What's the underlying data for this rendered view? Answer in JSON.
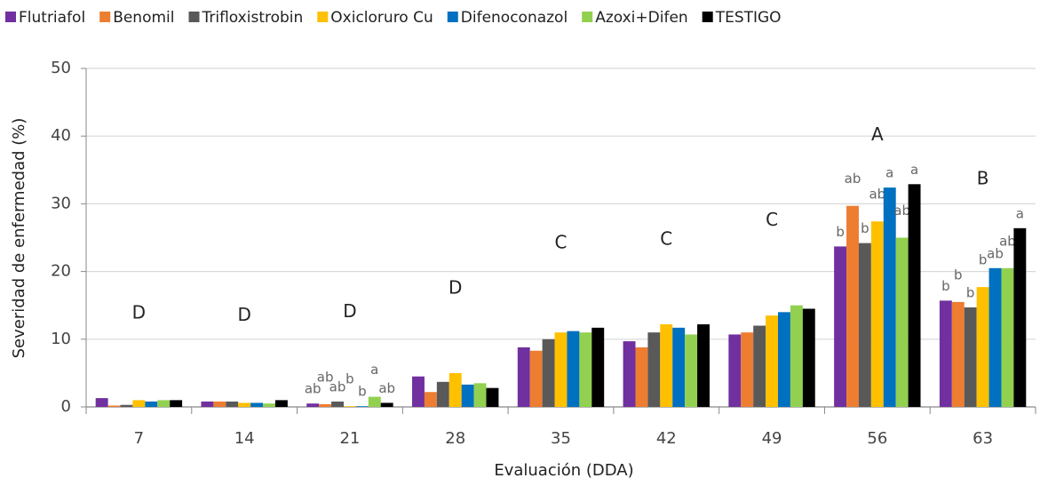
{
  "chart_data": {
    "type": "bar",
    "xlabel": "Evaluación (DDA)",
    "ylabel": "Severidad de enfermedad (%)",
    "categories": [
      "7",
      "14",
      "21",
      "28",
      "35",
      "42",
      "49",
      "56",
      "63"
    ],
    "group_letters": [
      "D",
      "D",
      "D",
      "D",
      "C",
      "C",
      "C",
      "A",
      "B"
    ],
    "series": [
      {
        "name": "Flutriafol",
        "color": "#7030a0",
        "values": [
          1.3,
          0.8,
          0.5,
          4.5,
          8.8,
          9.7,
          10.7,
          23.7,
          15.7
        ],
        "letters": [
          null,
          null,
          "ab",
          null,
          null,
          null,
          null,
          "b",
          "b"
        ]
      },
      {
        "name": "Benomil",
        "color": "#ed7d31",
        "values": [
          0.2,
          0.8,
          0.4,
          2.2,
          8.3,
          8.8,
          11.0,
          29.7,
          15.5
        ],
        "letters": [
          null,
          null,
          "ab",
          null,
          null,
          null,
          null,
          "ab",
          "b"
        ]
      },
      {
        "name": "Trifloxistrobin",
        "color": "#595959",
        "values": [
          0.3,
          0.8,
          0.8,
          3.7,
          10.0,
          11.0,
          12.0,
          24.2,
          14.7
        ],
        "letters": [
          null,
          null,
          "ab",
          null,
          null,
          null,
          null,
          "b",
          "b"
        ]
      },
      {
        "name": "Oxicloruro Cu",
        "color": "#ffc000",
        "values": [
          1.0,
          0.6,
          0.1,
          5.0,
          11.0,
          12.2,
          13.5,
          27.4,
          17.7
        ],
        "letters": [
          null,
          null,
          "b",
          null,
          null,
          null,
          null,
          "ab",
          "b"
        ]
      },
      {
        "name": "Difenoconazol",
        "color": "#0070c0",
        "values": [
          0.8,
          0.6,
          0.1,
          3.3,
          11.2,
          11.7,
          14.0,
          32.4,
          20.5
        ],
        "letters": [
          null,
          null,
          "b",
          null,
          null,
          null,
          null,
          "a",
          "ab"
        ]
      },
      {
        "name": "Azoxi+Difen",
        "color": "#92d050",
        "values": [
          1.0,
          0.5,
          1.5,
          3.5,
          11.0,
          10.7,
          15.0,
          25.0,
          20.5
        ],
        "letters": [
          null,
          null,
          "a",
          null,
          null,
          null,
          null,
          "ab",
          "ab"
        ]
      },
      {
        "name": "TESTIGO",
        "color": "#000000",
        "values": [
          1.0,
          1.0,
          0.6,
          2.8,
          11.7,
          12.2,
          14.5,
          32.9,
          26.4
        ],
        "letters": [
          null,
          null,
          "ab",
          null,
          null,
          null,
          null,
          "a",
          "a"
        ]
      }
    ],
    "ylim": [
      0,
      50
    ],
    "yticks": [
      0,
      10,
      20,
      30,
      40,
      50
    ],
    "grid": true,
    "legend": "top"
  }
}
